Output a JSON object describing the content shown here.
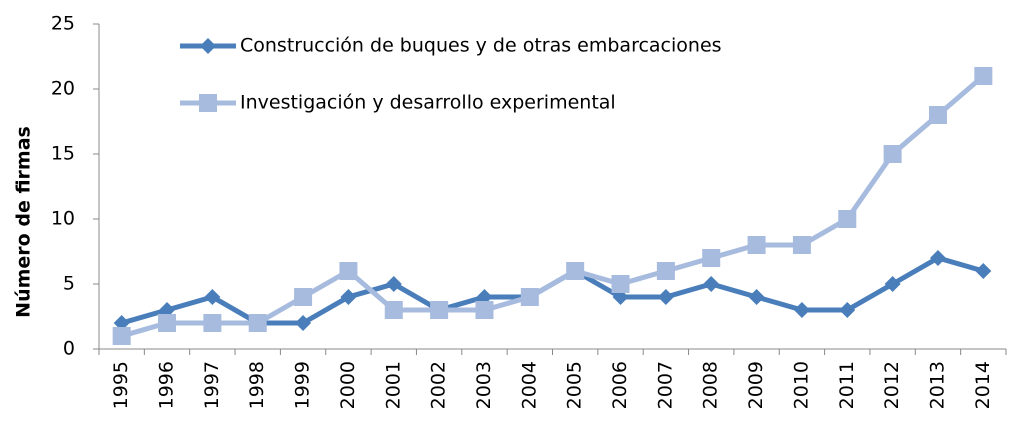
{
  "chart_data": {
    "type": "line",
    "y_label": "Número de firmas",
    "categories": [
      "1995",
      "1996",
      "1997",
      "1998",
      "1999",
      "2000",
      "2001",
      "2002",
      "2003",
      "2004",
      "2005",
      "2006",
      "2007",
      "2008",
      "2009",
      "2010",
      "2011",
      "2012",
      "2013",
      "2014"
    ],
    "series": [
      {
        "name": "Construcción de buques y de otras embarcaciones",
        "color": "#4a7ebb",
        "marker": "diamond",
        "values": [
          2,
          3,
          4,
          2,
          2,
          4,
          5,
          3,
          4,
          4,
          6,
          4,
          4,
          5,
          4,
          3,
          3,
          5,
          7,
          6
        ]
      },
      {
        "name": "Investigación y desarrollo experimental",
        "color": "#a6bbde",
        "marker": "square",
        "values": [
          1,
          2,
          2,
          2,
          4,
          6,
          3,
          3,
          3,
          4,
          6,
          5,
          6,
          7,
          8,
          8,
          10,
          15,
          18,
          21
        ]
      }
    ],
    "ylim": [
      0,
      25
    ],
    "yticks": [
      0,
      5,
      10,
      15,
      20,
      25
    ],
    "grid": false,
    "legend": "upper left"
  }
}
